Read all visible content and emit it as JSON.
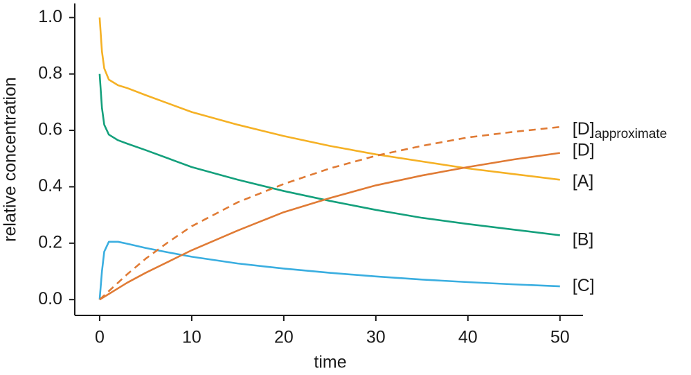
{
  "chart_data": {
    "type": "line",
    "xlabel": "time",
    "ylabel": "relative concentration",
    "x": [
      0,
      0.25,
      0.5,
      1,
      2,
      3,
      5,
      7.5,
      10,
      15,
      20,
      25,
      30,
      35,
      40,
      45,
      50
    ],
    "series": [
      {
        "name": "[A]",
        "color": "#f5b125",
        "values": [
          1.0,
          0.88,
          0.82,
          0.78,
          0.76,
          0.75,
          0.725,
          0.695,
          0.665,
          0.62,
          0.58,
          0.545,
          0.515,
          0.49,
          0.465,
          0.445,
          0.425
        ]
      },
      {
        "name": "[B]",
        "color": "#14a07c",
        "values": [
          0.8,
          0.68,
          0.62,
          0.585,
          0.565,
          0.553,
          0.53,
          0.5,
          0.47,
          0.425,
          0.385,
          0.35,
          0.318,
          0.29,
          0.268,
          0.248,
          0.228
        ]
      },
      {
        "name": "[C]",
        "color": "#3aaee0",
        "values": [
          0,
          0.1,
          0.17,
          0.205,
          0.205,
          0.198,
          0.183,
          0.167,
          0.152,
          0.128,
          0.11,
          0.095,
          0.082,
          0.071,
          0.062,
          0.054,
          0.047
        ]
      },
      {
        "name": "[D]",
        "color": "#e07b35",
        "values": [
          0,
          0.005,
          0.01,
          0.02,
          0.04,
          0.06,
          0.095,
          0.135,
          0.175,
          0.245,
          0.31,
          0.36,
          0.405,
          0.44,
          0.47,
          0.497,
          0.52
        ]
      },
      {
        "name": "[D]",
        "subscript": "approximate",
        "color": "#e07b35",
        "dashed": true,
        "values": [
          0,
          0.0075,
          0.015,
          0.03,
          0.06,
          0.09,
          0.145,
          0.205,
          0.26,
          0.345,
          0.41,
          0.465,
          0.51,
          0.545,
          0.575,
          0.595,
          0.612
        ]
      }
    ],
    "xlim": [
      -2.7,
      52.5
    ],
    "ylim": [
      -0.056,
      1.05
    ],
    "xticks": [
      0,
      10,
      20,
      30,
      40,
      50
    ],
    "yticks": [
      {
        "value": 0,
        "label": "0.0"
      },
      {
        "value": 0.2,
        "label": "0.2"
      },
      {
        "value": 0.4,
        "label": "0.4"
      },
      {
        "value": 0.6,
        "label": "0.6"
      },
      {
        "value": 0.8,
        "label": "0.8"
      },
      {
        "value": 1.0,
        "label": "1.0"
      }
    ]
  }
}
